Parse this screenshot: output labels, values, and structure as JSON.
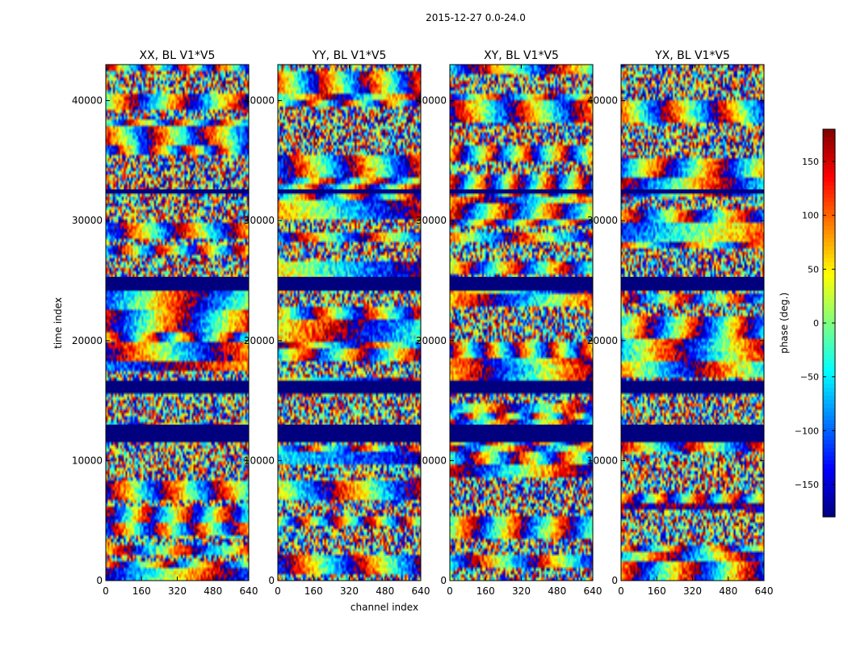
{
  "chart_data": {
    "type": "heatmap",
    "suptitle": "2015-12-27 0.0-24.0",
    "xlabel": "channel index",
    "ylabel": "time index",
    "xlim": [
      0,
      640
    ],
    "ylim": [
      0,
      43000
    ],
    "xticks": [
      0,
      160,
      320,
      480,
      640
    ],
    "yticks": [
      0,
      10000,
      20000,
      30000,
      40000
    ],
    "colorscale": "jet",
    "colorbar": {
      "label": "phase (deg.)",
      "range": [
        -180,
        180
      ],
      "ticks": [
        -150,
        -100,
        -50,
        0,
        50,
        100,
        150
      ],
      "ticklabels": [
        "−150",
        "−100",
        "−50",
        "0",
        "50",
        "100",
        "150"
      ]
    },
    "flagged_time_ranges": [
      [
        11600,
        13000
      ],
      [
        15700,
        16600
      ],
      [
        24200,
        25300
      ],
      [
        32300,
        32600
      ]
    ],
    "panels": [
      {
        "title": "XX, BL V1*V5"
      },
      {
        "title": "YY, BL V1*V5"
      },
      {
        "title": "XY, BL V1*V5"
      },
      {
        "title": "YX, BL V1*V5"
      }
    ]
  }
}
